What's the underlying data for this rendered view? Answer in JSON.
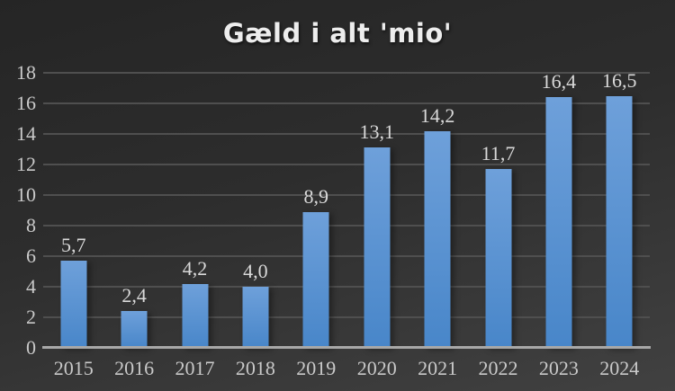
{
  "chart_data": {
    "type": "bar",
    "title": "Gæld i alt 'mio'",
    "categories": [
      "2015",
      "2016",
      "2017",
      "2018",
      "2019",
      "2020",
      "2021",
      "2022",
      "2023",
      "2024"
    ],
    "values": [
      5.7,
      2.4,
      4.2,
      4.0,
      8.9,
      13.1,
      14.2,
      11.7,
      16.4,
      16.5
    ],
    "value_labels": [
      "5,7",
      "2,4",
      "4,2",
      "4,0",
      "8,9",
      "13,1",
      "14,2",
      "11,7",
      "16,4",
      "16,5"
    ],
    "xlabel": "",
    "ylabel": "",
    "ylim": [
      0,
      18
    ],
    "y_ticks": [
      0,
      2,
      4,
      6,
      8,
      10,
      12,
      14,
      16,
      18
    ],
    "grid": true,
    "legend": false
  },
  "colors": {
    "background_top": "#252525",
    "background_bottom": "#414141",
    "bar_top": "#6ea0da",
    "bar_bottom": "#4886c9",
    "gridline": "#4f4f4f",
    "axis_line": "#a8a8a8",
    "tick_text": "#c9c9c9",
    "data_label_text": "#d9d9d9",
    "title_text": "#ededed"
  }
}
